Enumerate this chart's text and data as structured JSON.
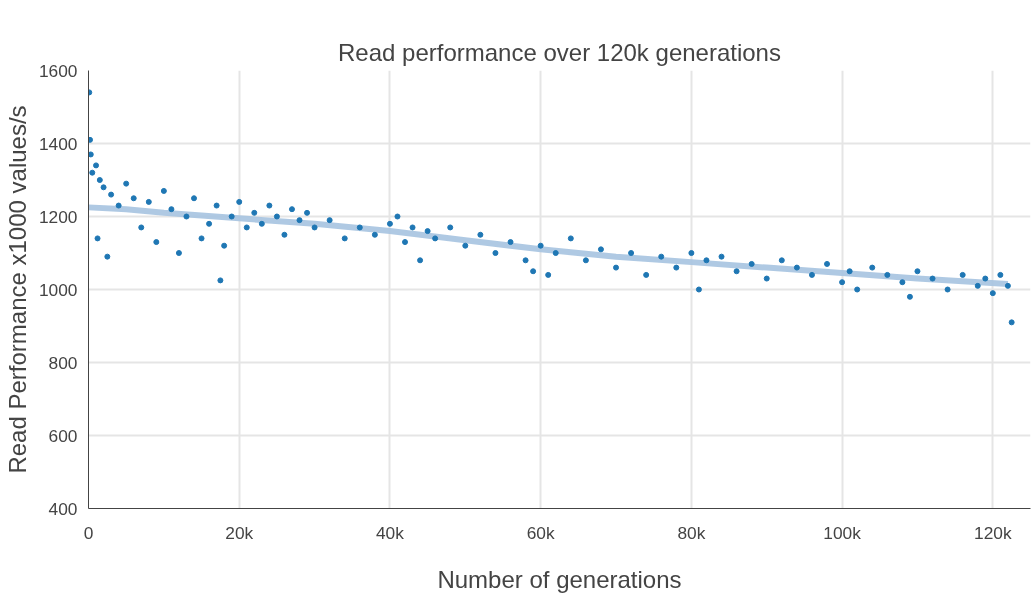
{
  "chart_data": {
    "type": "scatter",
    "title": "Read performance over 120k generations",
    "xlabel": "Number of generations",
    "ylabel": "Read Performance x1000 values/s",
    "xlim": [
      0,
      125000
    ],
    "xticks": [
      {
        "value": 0,
        "label": "0"
      },
      {
        "value": 20000,
        "label": "20k"
      },
      {
        "value": 40000,
        "label": "40k"
      },
      {
        "value": 60000,
        "label": "60k"
      },
      {
        "value": 80000,
        "label": "80k"
      },
      {
        "value": 100000,
        "label": "100k"
      },
      {
        "value": 120000,
        "label": "120k"
      }
    ],
    "ylim": [
      400,
      1600
    ],
    "yticks": [
      400,
      600,
      800,
      1000,
      1200,
      1400,
      1600
    ],
    "grid": true,
    "marker": "circle",
    "series": [
      {
        "type": "line",
        "marker": "none",
        "color": "#a6c3e0",
        "x": [
          0,
          5000,
          10000,
          20000,
          30000,
          40000,
          50000,
          60000,
          70000,
          80000,
          90000,
          100000,
          110000,
          122000
        ],
        "values": [
          1225,
          1220,
          1210,
          1195,
          1180,
          1160,
          1135,
          1110,
          1090,
          1075,
          1060,
          1045,
          1030,
          1015
        ]
      },
      {
        "color": "#1f77b4",
        "x": [
          100,
          200,
          300,
          500,
          1000,
          1200,
          1500,
          2000,
          2500,
          3000,
          4000,
          5000,
          6000,
          7000,
          8000,
          9000,
          10000,
          11000,
          12000,
          13000,
          14000,
          15000,
          16000,
          17000,
          17500,
          18000,
          19000,
          20000,
          21000,
          22000,
          23000,
          24000,
          25000,
          26000,
          27000,
          28000,
          29000,
          30000,
          32000,
          34000,
          36000,
          38000,
          40000,
          41000,
          42000,
          43000,
          44000,
          45000,
          46000,
          48000,
          50000,
          52000,
          54000,
          56000,
          58000,
          59000,
          60000,
          61000,
          62000,
          64000,
          66000,
          68000,
          70000,
          72000,
          74000,
          76000,
          78000,
          80000,
          81000,
          82000,
          84000,
          86000,
          88000,
          90000,
          92000,
          94000,
          96000,
          98000,
          100000,
          101000,
          102000,
          104000,
          106000,
          108000,
          109000,
          110000,
          112000,
          114000,
          116000,
          118000,
          119000,
          120000,
          121000,
          122000,
          122500
        ],
        "values": [
          1540,
          1410,
          1370,
          1320,
          1340,
          1140,
          1300,
          1280,
          1090,
          1260,
          1230,
          1290,
          1250,
          1170,
          1240,
          1130,
          1270,
          1220,
          1100,
          1200,
          1250,
          1140,
          1180,
          1230,
          1025,
          1120,
          1200,
          1240,
          1170,
          1210,
          1180,
          1230,
          1200,
          1150,
          1220,
          1190,
          1210,
          1170,
          1190,
          1140,
          1170,
          1150,
          1180,
          1200,
          1130,
          1170,
          1080,
          1160,
          1140,
          1170,
          1120,
          1150,
          1100,
          1130,
          1080,
          1050,
          1120,
          1040,
          1100,
          1140,
          1080,
          1110,
          1060,
          1100,
          1040,
          1090,
          1060,
          1100,
          1000,
          1080,
          1090,
          1050,
          1070,
          1030,
          1080,
          1060,
          1040,
          1070,
          1020,
          1050,
          1000,
          1060,
          1040,
          1020,
          980,
          1050,
          1030,
          1000,
          1040,
          1010,
          1030,
          990,
          1040,
          1010,
          910
        ]
      }
    ]
  }
}
